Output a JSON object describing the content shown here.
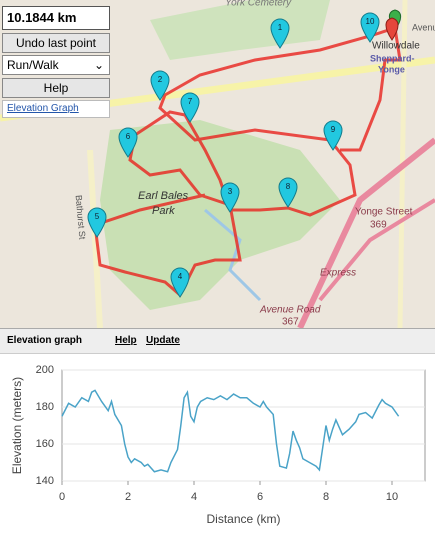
{
  "controls": {
    "distance": "10.1844 km",
    "undo": "Undo last point",
    "mode": "Run/Walk",
    "help": "Help",
    "elevation_link": "Elevation Graph"
  },
  "map": {
    "labels": [
      "York Cemetery",
      "Willowdale",
      "Sheppard-",
      "Yonge",
      "Avenue",
      "Earl Bales",
      "Park",
      "Bathurst St",
      "Yonge Street",
      "369",
      "Express",
      "Avenue Road",
      "367"
    ],
    "markers": [
      "1",
      "2",
      "3",
      "4",
      "5",
      "6",
      "7",
      "8",
      "9",
      "10"
    ]
  },
  "panel": {
    "title": "Elevation graph",
    "help": "Help",
    "update": "Update"
  },
  "chart_data": {
    "type": "line",
    "xlabel": "Distance (km)",
    "ylabel": "Elevation (meters)",
    "x": [
      0,
      0.2,
      0.4,
      0.6,
      0.8,
      0.9,
      1.0,
      1.2,
      1.4,
      1.5,
      1.6,
      1.8,
      1.9,
      2.0,
      2.1,
      2.2,
      2.4,
      2.5,
      2.6,
      2.8,
      3.0,
      3.2,
      3.3,
      3.5,
      3.6,
      3.7,
      3.8,
      3.9,
      4.0,
      4.1,
      4.2,
      4.4,
      4.6,
      4.8,
      5.0,
      5.2,
      5.4,
      5.6,
      5.8,
      6.0,
      6.1,
      6.2,
      6.4,
      6.5,
      6.6,
      6.8,
      6.9,
      7.0,
      7.1,
      7.2,
      7.3,
      7.5,
      7.7,
      7.8,
      7.9,
      8.0,
      8.1,
      8.2,
      8.3,
      8.5,
      8.7,
      8.9,
      9.0,
      9.2,
      9.4,
      9.6,
      9.7,
      9.8,
      10.0,
      10.2
    ],
    "values": [
      175,
      182,
      180,
      185,
      183,
      188,
      189,
      183,
      178,
      183,
      176,
      170,
      160,
      153,
      150,
      152,
      150,
      148,
      149,
      145,
      146,
      145,
      150,
      157,
      170,
      185,
      188,
      175,
      172,
      180,
      183,
      185,
      184,
      186,
      184,
      187,
      185,
      185,
      182,
      180,
      183,
      180,
      176,
      160,
      148,
      147,
      155,
      167,
      162,
      158,
      152,
      150,
      148,
      146,
      158,
      170,
      162,
      168,
      173,
      165,
      168,
      172,
      176,
      177,
      174,
      181,
      184,
      182,
      180,
      175
    ],
    "color": "#4aa3c8",
    "xlim": [
      0,
      11
    ],
    "ylim": [
      140,
      200
    ],
    "xticks": [
      0,
      2,
      4,
      6,
      8,
      10
    ],
    "yticks": [
      140,
      160,
      180,
      200
    ],
    "grid": true
  }
}
